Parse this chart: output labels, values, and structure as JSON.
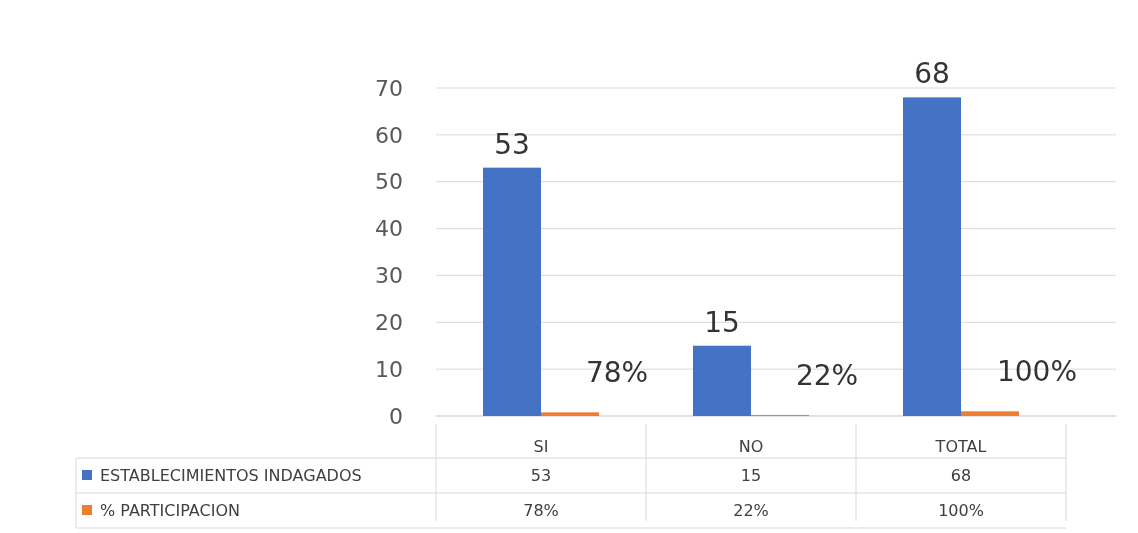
{
  "chart_data": {
    "type": "bar",
    "categories": [
      "SI",
      "NO",
      "TOTAL"
    ],
    "series": [
      {
        "name": "ESTABLECIMIENTOS INDAGADOS",
        "color": "#4472c4",
        "values": [
          53,
          15,
          68
        ],
        "value_labels": [
          "53",
          "15",
          "68"
        ]
      },
      {
        "name": "% PARTICIPACION",
        "color": "#ed7d31",
        "values": [
          0.78,
          0.22,
          1
        ],
        "value_labels": [
          "78%",
          "22%",
          "100%"
        ]
      }
    ],
    "ylim": [
      0,
      70
    ],
    "yticks": [
      0,
      10,
      20,
      30,
      40,
      50,
      60,
      70
    ],
    "grid": "y",
    "legend": "bottom"
  }
}
